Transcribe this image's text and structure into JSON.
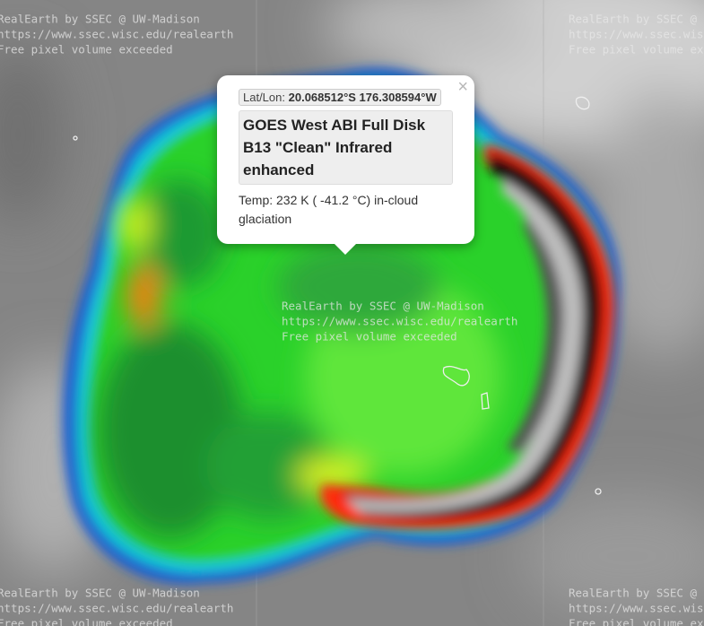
{
  "watermark": {
    "lines": [
      "RealEarth by SSEC @ UW-Madison",
      "https://www.ssec.wisc.edu/realearth",
      "Free pixel volume exceeded"
    ]
  },
  "popup": {
    "latlon_label": "Lat/Lon:",
    "latlon_value": "20.068512°S 176.308594°W",
    "title": "GOES West ABI Full Disk B13 \"Clean\" Infrared enhanced",
    "body": "Temp: 232 K ( -41.2 °C) in-cloud glaciation",
    "close": "×"
  }
}
